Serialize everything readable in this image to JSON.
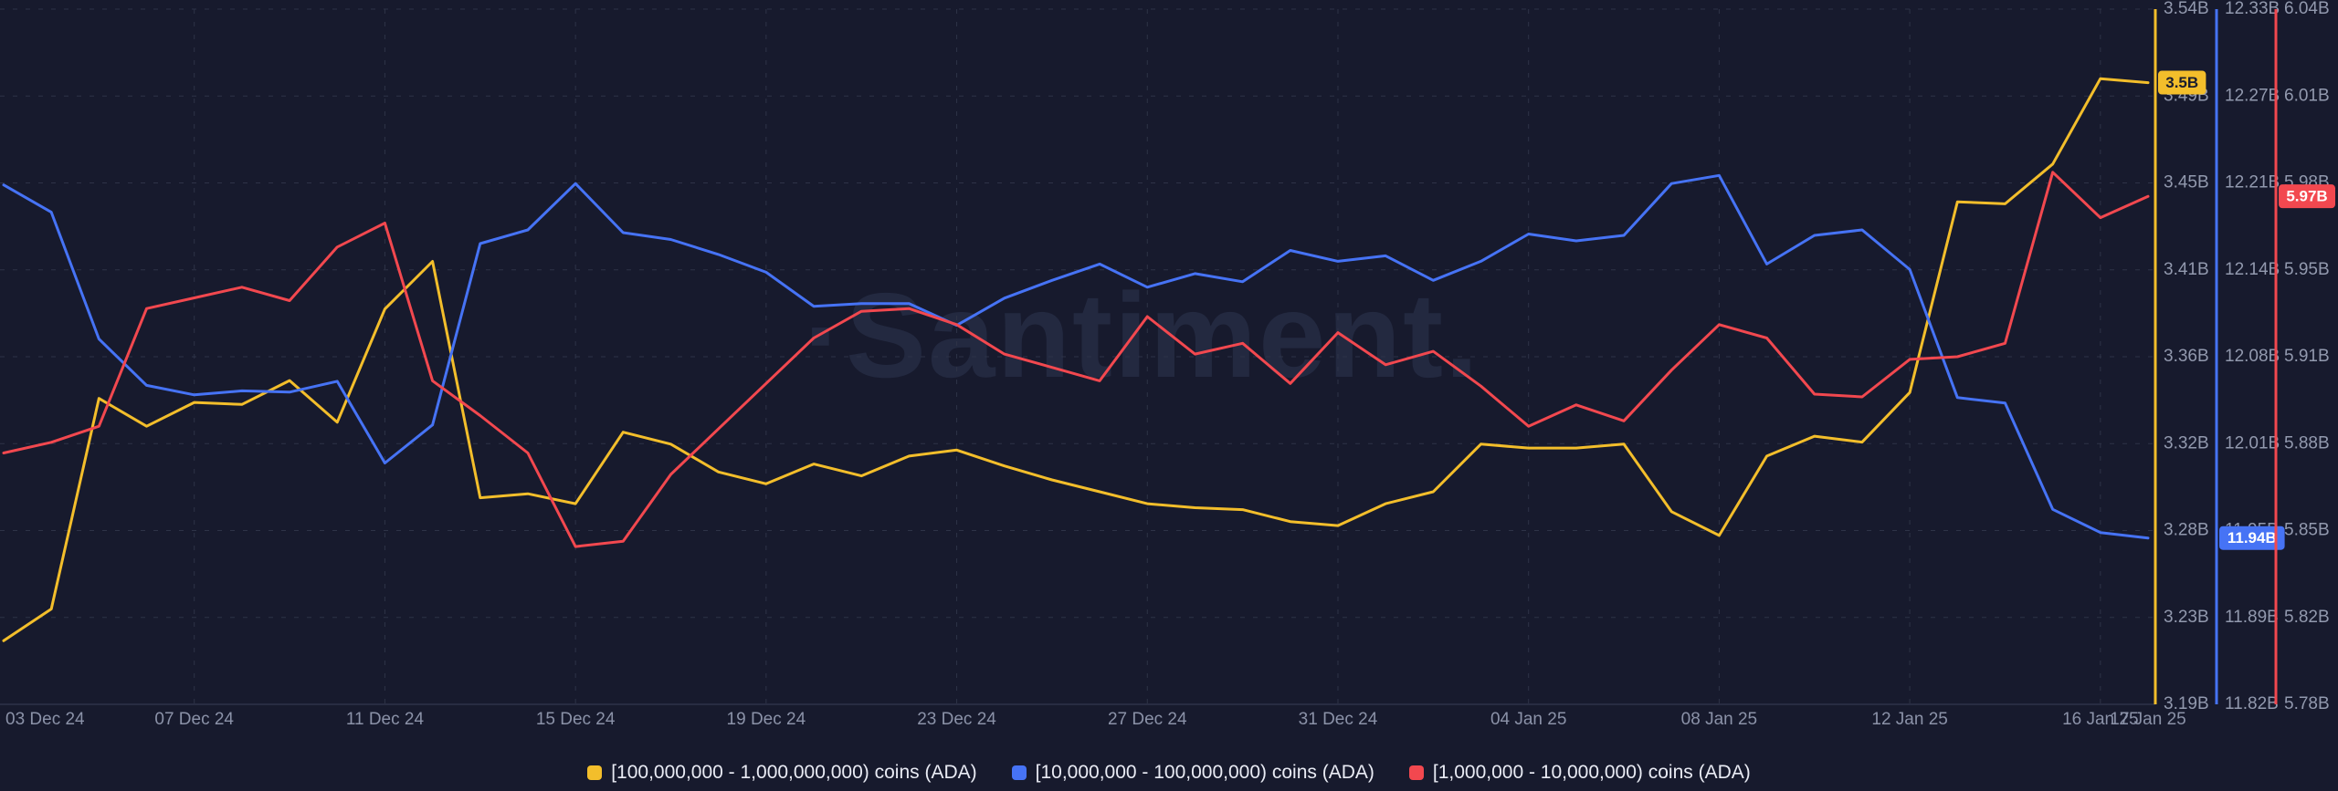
{
  "watermark": "·Santiment.",
  "colors": {
    "background": "#171a2d",
    "grid": "#2e3347",
    "axis_line": "#3a3f56",
    "axis_label": "#9299ae",
    "x_label": "#8b92a8",
    "legend_text": "#e9ebf4",
    "watermark": "#232940"
  },
  "chart_data": {
    "type": "line",
    "title": "",
    "watermark": "·Santiment.",
    "grid": "dashed",
    "legend_position": "bottom-center",
    "x": [
      "03 Dec 24",
      "04 Dec 24",
      "05 Dec 24",
      "06 Dec 24",
      "07 Dec 24",
      "08 Dec 24",
      "09 Dec 24",
      "10 Dec 24",
      "11 Dec 24",
      "12 Dec 24",
      "13 Dec 24",
      "14 Dec 24",
      "15 Dec 24",
      "16 Dec 24",
      "17 Dec 24",
      "18 Dec 24",
      "19 Dec 24",
      "20 Dec 24",
      "21 Dec 24",
      "22 Dec 24",
      "23 Dec 24",
      "24 Dec 24",
      "25 Dec 24",
      "26 Dec 24",
      "27 Dec 24",
      "28 Dec 24",
      "29 Dec 24",
      "30 Dec 24",
      "31 Dec 24",
      "01 Jan 25",
      "02 Jan 25",
      "03 Jan 25",
      "04 Jan 25",
      "05 Jan 25",
      "06 Jan 25",
      "07 Jan 25",
      "08 Jan 25",
      "09 Jan 25",
      "10 Jan 25",
      "11 Jan 25",
      "12 Jan 25",
      "13 Jan 25",
      "14 Jan 25",
      "15 Jan 25",
      "16 Jan 25",
      "17 Jan 25"
    ],
    "x_tick_labels": [
      "03 Dec 24",
      "07 Dec 24",
      "11 Dec 24",
      "15 Dec 24",
      "19 Dec 24",
      "23 Dec 24",
      "27 Dec 24",
      "31 Dec 24",
      "04 Jan 25",
      "08 Jan 25",
      "12 Jan 25",
      "16 Jan 25",
      "17 Jan 25"
    ],
    "x_tick_indices": [
      0,
      4,
      8,
      12,
      16,
      20,
      24,
      28,
      32,
      36,
      40,
      44,
      45
    ],
    "series": [
      {
        "name": "[100,000,000 - 1,000,000,000) coins (ADA)",
        "color": "#F3BE2B",
        "badge_label": "3.5B",
        "badge_text_color": "#1b1e2e",
        "axis_min": 3.19,
        "axis_max": 3.54,
        "axis_ticks": [
          "3.54B",
          "3.49B",
          "3.45B",
          "3.41B",
          "3.36B",
          "3.32B",
          "3.28B",
          "3.23B",
          "3.19B"
        ],
        "values": [
          3.222,
          3.238,
          3.344,
          3.33,
          3.342,
          3.341,
          3.353,
          3.332,
          3.389,
          3.413,
          3.294,
          3.296,
          3.291,
          3.327,
          3.321,
          3.307,
          3.301,
          3.311,
          3.305,
          3.315,
          3.318,
          3.31,
          3.303,
          3.297,
          3.291,
          3.289,
          3.288,
          3.282,
          3.28,
          3.291,
          3.297,
          3.321,
          3.319,
          3.319,
          3.321,
          3.287,
          3.275,
          3.315,
          3.325,
          3.322,
          3.347,
          3.443,
          3.442,
          3.462,
          3.505,
          3.503
        ]
      },
      {
        "name": "[10,000,000 - 100,000,000) coins (ADA)",
        "color": "#4673F5",
        "badge_label": "11.94B",
        "badge_text_color": "#ffffff",
        "axis_min": 11.82,
        "axis_max": 12.33,
        "axis_ticks": [
          "12.33B",
          "12.27B",
          "12.21B",
          "12.14B",
          "12.08B",
          "12.01B",
          "11.95B",
          "11.89B",
          "11.82B"
        ],
        "values": [
          12.201,
          12.181,
          12.088,
          12.054,
          12.047,
          12.05,
          12.049,
          12.057,
          11.997,
          12.025,
          12.158,
          12.168,
          12.202,
          12.166,
          12.161,
          12.15,
          12.137,
          12.112,
          12.114,
          12.114,
          12.098,
          12.118,
          12.131,
          12.143,
          12.126,
          12.136,
          12.13,
          12.153,
          12.145,
          12.149,
          12.131,
          12.145,
          12.165,
          12.16,
          12.164,
          12.202,
          12.208,
          12.143,
          12.164,
          12.168,
          12.139,
          12.045,
          12.041,
          11.963,
          11.946,
          11.942
        ]
      },
      {
        "name": "[1,000,000 - 10,000,000) coins (ADA)",
        "color": "#F2484F",
        "badge_label": "5.97B",
        "badge_text_color": "#ffffff",
        "axis_min": 5.78,
        "axis_max": 6.04,
        "axis_ticks": [
          "6.04B",
          "6.01B",
          "5.98B",
          "5.95B",
          "5.91B",
          "5.88B",
          "5.85B",
          "5.82B",
          "5.78B"
        ],
        "values": [
          5.874,
          5.878,
          5.884,
          5.928,
          5.932,
          5.936,
          5.931,
          5.951,
          5.96,
          5.901,
          5.888,
          5.874,
          5.839,
          5.841,
          5.866,
          5.883,
          5.9,
          5.917,
          5.927,
          5.928,
          5.922,
          5.911,
          5.906,
          5.901,
          5.925,
          5.911,
          5.915,
          5.9,
          5.919,
          5.907,
          5.912,
          5.899,
          5.884,
          5.892,
          5.886,
          5.905,
          5.922,
          5.917,
          5.896,
          5.895,
          5.909,
          5.91,
          5.915,
          5.979,
          5.962,
          5.97
        ]
      }
    ]
  }
}
